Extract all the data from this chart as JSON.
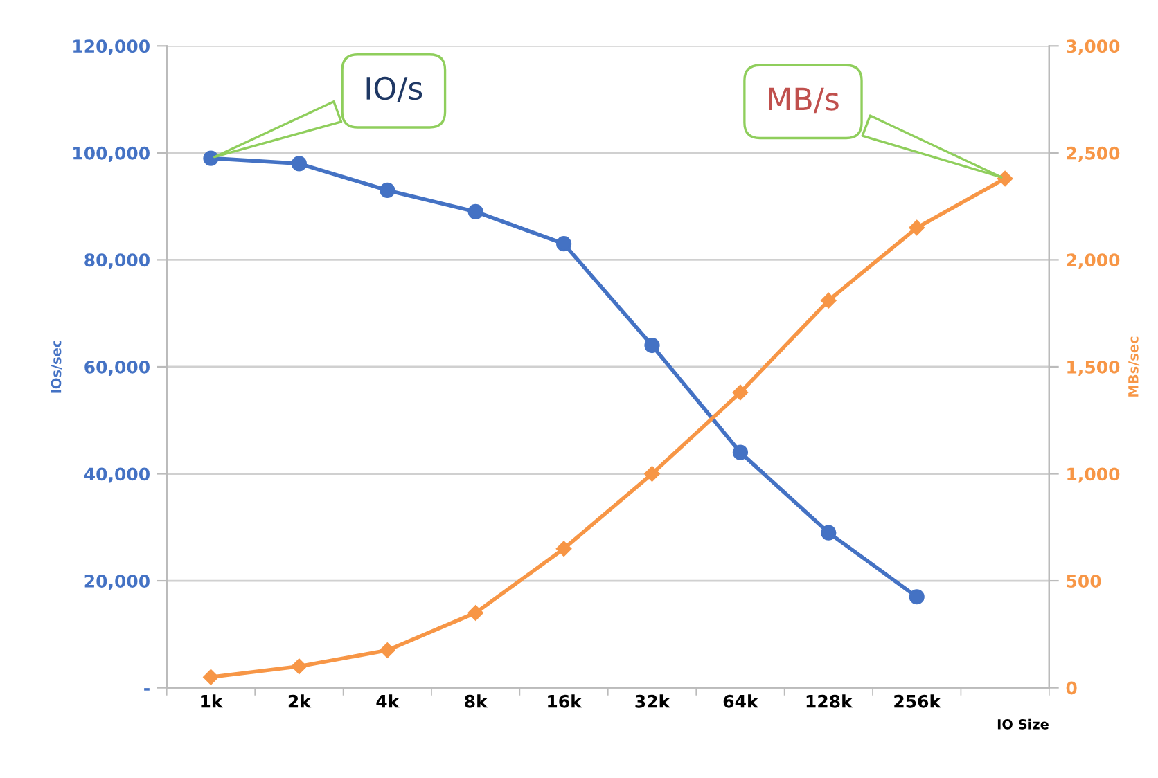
{
  "chart_data": {
    "type": "line",
    "categories": [
      "1k",
      "2k",
      "4k",
      "8k",
      "16k",
      "32k",
      "64k",
      "128k",
      "256k",
      null
    ],
    "series": [
      {
        "name": "IO/s",
        "color": "#4472c4",
        "marker": "circle",
        "values": [
          99000,
          98000,
          93000,
          89000,
          83000,
          64000,
          44000,
          29000,
          17000,
          null
        ]
      },
      {
        "name": "MB/s",
        "color": "#f79646",
        "marker": "diamond",
        "axis": "y2",
        "values": [
          50,
          100,
          175,
          350,
          650,
          1000,
          1380,
          1810,
          2150,
          2380
        ]
      }
    ],
    "xlabel": "IO Size",
    "ylabel": "IOs/sec",
    "y2label": "MBs/sec",
    "ylim": [
      0,
      120000
    ],
    "yticks": [
      {
        "value": 0,
        "label": "-"
      },
      {
        "value": 20000,
        "label": "20,000"
      },
      {
        "value": 40000,
        "label": "40,000"
      },
      {
        "value": 60000,
        "label": "60,000"
      },
      {
        "value": 80000,
        "label": "80,000"
      },
      {
        "value": 100000,
        "label": "100,000"
      },
      {
        "value": 120000,
        "label": "120,000"
      }
    ],
    "y2lim": [
      0,
      3000
    ],
    "y2ticks": [
      0,
      {
        "value": 500,
        "label": "500"
      },
      {
        "value": 1000,
        "label": "1,000"
      },
      {
        "value": 1500,
        "label": "1,500"
      },
      {
        "value": 2000,
        "label": "2,000"
      },
      {
        "value": 2500,
        "label": "2,500"
      },
      {
        "value": 3000,
        "label": "3,000"
      }
    ],
    "grid": "y",
    "legend": false,
    "line_style": "solid"
  }
}
